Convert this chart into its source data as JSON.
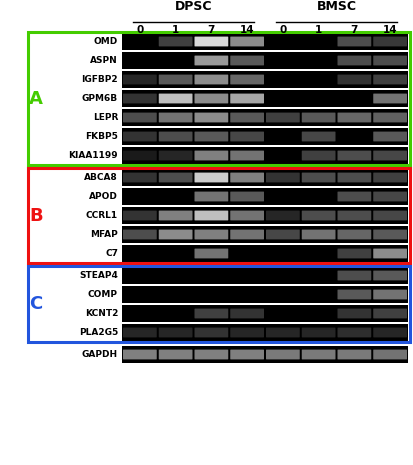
{
  "title_dpsc": "DPSC",
  "title_bmsc": "BMSC",
  "time_labels": [
    "0",
    "1",
    "7",
    "14"
  ],
  "group_A_label": "A",
  "group_B_label": "B",
  "group_C_label": "C",
  "group_A_genes": [
    "OMD",
    "ASPN",
    "IGFBP2",
    "GPM6B",
    "LEPR",
    "FKBP5",
    "KIAA1199"
  ],
  "group_B_genes": [
    "ABCA8",
    "APOD",
    "CCRL1",
    "MFAP",
    "C7"
  ],
  "group_C_genes": [
    "STEAP4",
    "COMP",
    "KCNT2",
    "PLA2G5"
  ],
  "control_gene": "GAPDH",
  "group_A_color": "#44cc00",
  "group_B_color": "#ee1111",
  "group_C_color": "#2255dd",
  "bands": {
    "OMD": [
      0,
      0.25,
      0.85,
      0.55,
      0,
      0,
      0.3,
      0.22
    ],
    "ASPN": [
      0,
      0,
      0.6,
      0.35,
      0,
      0,
      0.3,
      0.3
    ],
    "IGFBP2": [
      0.15,
      0.35,
      0.55,
      0.4,
      0,
      0,
      0.2,
      0.25
    ],
    "GPM6B": [
      0.2,
      0.75,
      0.55,
      0.65,
      0,
      0,
      0,
      0.45
    ],
    "LEPR": [
      0.3,
      0.45,
      0.55,
      0.35,
      0.25,
      0.35,
      0.4,
      0.38
    ],
    "FKBP5": [
      0.2,
      0.3,
      0.35,
      0.28,
      0,
      0.28,
      0,
      0.35
    ],
    "KIAA1199": [
      0.1,
      0.15,
      0.5,
      0.45,
      0,
      0.25,
      0.3,
      0.28
    ],
    "ABCA8": [
      0.2,
      0.3,
      0.8,
      0.5,
      0.2,
      0.3,
      0.3,
      0.25
    ],
    "APOD": [
      0,
      0,
      0.45,
      0.35,
      0,
      0,
      0.3,
      0.28
    ],
    "CCRL1": [
      0.2,
      0.5,
      0.75,
      0.45,
      0.15,
      0.3,
      0.3,
      0.28
    ],
    "MFAP": [
      0.3,
      0.55,
      0.5,
      0.45,
      0.28,
      0.45,
      0.4,
      0.35
    ],
    "C7": [
      0,
      0,
      0.45,
      0,
      0,
      0,
      0.25,
      0.55
    ],
    "STEAP4": [
      0,
      0,
      0,
      0,
      0,
      0,
      0.3,
      0.35
    ],
    "COMP": [
      0,
      0,
      0,
      0,
      0,
      0,
      0.35,
      0.45
    ],
    "KCNT2": [
      0,
      0,
      0.25,
      0.2,
      0,
      0,
      0.2,
      0.25
    ],
    "PLA2G5": [
      0.15,
      0.15,
      0.2,
      0.15,
      0.15,
      0.15,
      0.18,
      0.15
    ],
    "GAPDH": [
      0.5,
      0.5,
      0.5,
      0.5,
      0.48,
      0.48,
      0.48,
      0.45
    ]
  }
}
